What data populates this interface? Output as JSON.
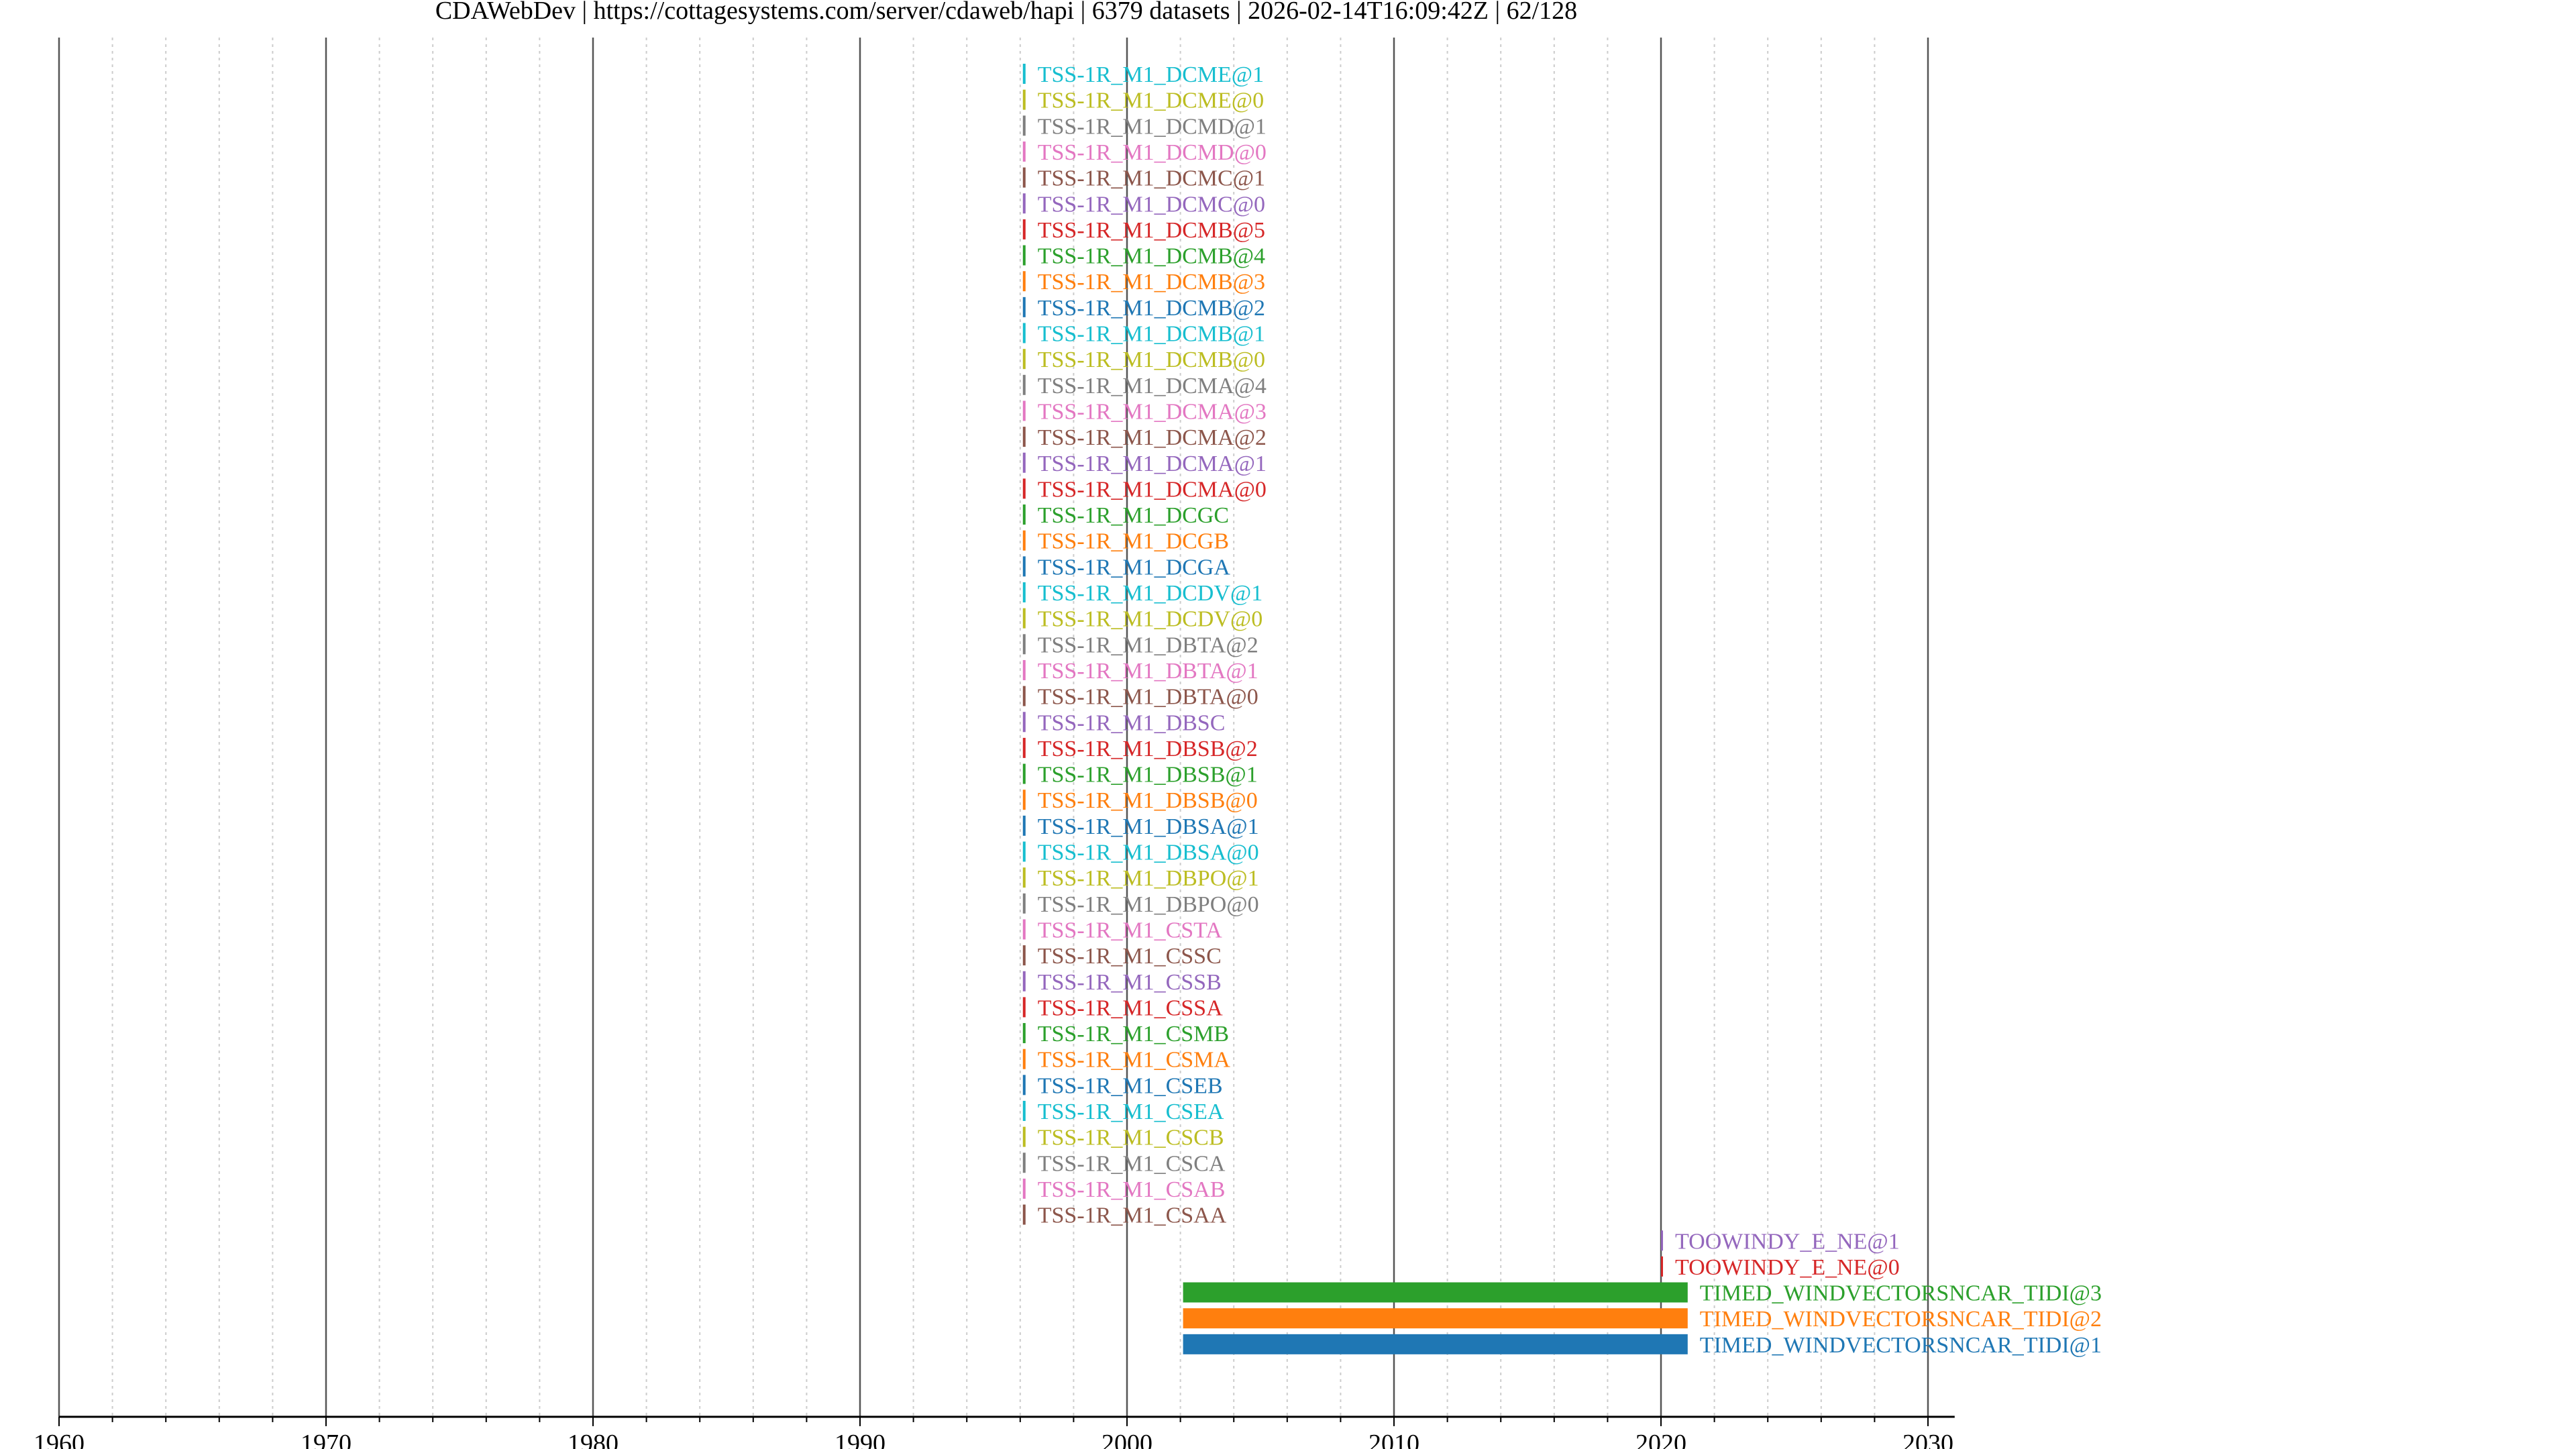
{
  "chart_data": {
    "type": "bar",
    "orientation": "horizontal",
    "title": "CDAWebDev | https://cottagesystems.com/server/cdaweb/hapi | 6379 datasets | 2026-02-14T16:09:42Z | 62/128",
    "xlabel": "",
    "ylabel": "",
    "xlim": [
      1960,
      2031
    ],
    "x_ticks": [
      "1960",
      "1970",
      "1980",
      "1990",
      "2000",
      "2010",
      "2020",
      "2030"
    ],
    "grid": {
      "major_years": 10,
      "minor_years": 2
    },
    "legend": "none",
    "series": [
      {
        "name": "TSS-1R_M1_DCME@1",
        "start": 1996.1,
        "end": 1996.2,
        "color": "#17becf"
      },
      {
        "name": "TSS-1R_M1_DCME@0",
        "start": 1996.1,
        "end": 1996.2,
        "color": "#bcbd22"
      },
      {
        "name": "TSS-1R_M1_DCMD@1",
        "start": 1996.1,
        "end": 1996.2,
        "color": "#7f7f7f"
      },
      {
        "name": "TSS-1R_M1_DCMD@0",
        "start": 1996.1,
        "end": 1996.2,
        "color": "#e377c2"
      },
      {
        "name": "TSS-1R_M1_DCMC@1",
        "start": 1996.1,
        "end": 1996.2,
        "color": "#8c564b"
      },
      {
        "name": "TSS-1R_M1_DCMC@0",
        "start": 1996.1,
        "end": 1996.2,
        "color": "#9467bd"
      },
      {
        "name": "TSS-1R_M1_DCMB@5",
        "start": 1996.1,
        "end": 1996.2,
        "color": "#d62728"
      },
      {
        "name": "TSS-1R_M1_DCMB@4",
        "start": 1996.1,
        "end": 1996.2,
        "color": "#2ca02c"
      },
      {
        "name": "TSS-1R_M1_DCMB@3",
        "start": 1996.1,
        "end": 1996.2,
        "color": "#ff7f0e"
      },
      {
        "name": "TSS-1R_M1_DCMB@2",
        "start": 1996.1,
        "end": 1996.2,
        "color": "#1f77b4"
      },
      {
        "name": "TSS-1R_M1_DCMB@1",
        "start": 1996.1,
        "end": 1996.2,
        "color": "#17becf"
      },
      {
        "name": "TSS-1R_M1_DCMB@0",
        "start": 1996.1,
        "end": 1996.2,
        "color": "#bcbd22"
      },
      {
        "name": "TSS-1R_M1_DCMA@4",
        "start": 1996.1,
        "end": 1996.2,
        "color": "#7f7f7f"
      },
      {
        "name": "TSS-1R_M1_DCMA@3",
        "start": 1996.1,
        "end": 1996.2,
        "color": "#e377c2"
      },
      {
        "name": "TSS-1R_M1_DCMA@2",
        "start": 1996.1,
        "end": 1996.2,
        "color": "#8c564b"
      },
      {
        "name": "TSS-1R_M1_DCMA@1",
        "start": 1996.1,
        "end": 1996.2,
        "color": "#9467bd"
      },
      {
        "name": "TSS-1R_M1_DCMA@0",
        "start": 1996.1,
        "end": 1996.2,
        "color": "#d62728"
      },
      {
        "name": "TSS-1R_M1_DCGC",
        "start": 1996.1,
        "end": 1996.2,
        "color": "#2ca02c"
      },
      {
        "name": "TSS-1R_M1_DCGB",
        "start": 1996.1,
        "end": 1996.2,
        "color": "#ff7f0e"
      },
      {
        "name": "TSS-1R_M1_DCGA",
        "start": 1996.1,
        "end": 1996.2,
        "color": "#1f77b4"
      },
      {
        "name": "TSS-1R_M1_DCDV@1",
        "start": 1996.1,
        "end": 1996.2,
        "color": "#17becf"
      },
      {
        "name": "TSS-1R_M1_DCDV@0",
        "start": 1996.1,
        "end": 1996.2,
        "color": "#bcbd22"
      },
      {
        "name": "TSS-1R_M1_DBTA@2",
        "start": 1996.1,
        "end": 1996.2,
        "color": "#7f7f7f"
      },
      {
        "name": "TSS-1R_M1_DBTA@1",
        "start": 1996.1,
        "end": 1996.2,
        "color": "#e377c2"
      },
      {
        "name": "TSS-1R_M1_DBTA@0",
        "start": 1996.1,
        "end": 1996.2,
        "color": "#8c564b"
      },
      {
        "name": "TSS-1R_M1_DBSC",
        "start": 1996.1,
        "end": 1996.2,
        "color": "#9467bd"
      },
      {
        "name": "TSS-1R_M1_DBSB@2",
        "start": 1996.1,
        "end": 1996.2,
        "color": "#d62728"
      },
      {
        "name": "TSS-1R_M1_DBSB@1",
        "start": 1996.1,
        "end": 1996.2,
        "color": "#2ca02c"
      },
      {
        "name": "TSS-1R_M1_DBSB@0",
        "start": 1996.1,
        "end": 1996.2,
        "color": "#ff7f0e"
      },
      {
        "name": "TSS-1R_M1_DBSA@1",
        "start": 1996.1,
        "end": 1996.2,
        "color": "#1f77b4"
      },
      {
        "name": "TSS-1R_M1_DBSA@0",
        "start": 1996.1,
        "end": 1996.2,
        "color": "#17becf"
      },
      {
        "name": "TSS-1R_M1_DBPO@1",
        "start": 1996.1,
        "end": 1996.2,
        "color": "#bcbd22"
      },
      {
        "name": "TSS-1R_M1_DBPO@0",
        "start": 1996.1,
        "end": 1996.2,
        "color": "#7f7f7f"
      },
      {
        "name": "TSS-1R_M1_CSTA",
        "start": 1996.1,
        "end": 1996.2,
        "color": "#e377c2"
      },
      {
        "name": "TSS-1R_M1_CSSC",
        "start": 1996.1,
        "end": 1996.2,
        "color": "#8c564b"
      },
      {
        "name": "TSS-1R_M1_CSSB",
        "start": 1996.1,
        "end": 1996.2,
        "color": "#9467bd"
      },
      {
        "name": "TSS-1R_M1_CSSA",
        "start": 1996.1,
        "end": 1996.2,
        "color": "#d62728"
      },
      {
        "name": "TSS-1R_M1_CSMB",
        "start": 1996.1,
        "end": 1996.2,
        "color": "#2ca02c"
      },
      {
        "name": "TSS-1R_M1_CSMA",
        "start": 1996.1,
        "end": 1996.2,
        "color": "#ff7f0e"
      },
      {
        "name": "TSS-1R_M1_CSEB",
        "start": 1996.1,
        "end": 1996.2,
        "color": "#1f77b4"
      },
      {
        "name": "TSS-1R_M1_CSEA",
        "start": 1996.1,
        "end": 1996.2,
        "color": "#17becf"
      },
      {
        "name": "TSS-1R_M1_CSCB",
        "start": 1996.1,
        "end": 1996.2,
        "color": "#bcbd22"
      },
      {
        "name": "TSS-1R_M1_CSCA",
        "start": 1996.1,
        "end": 1996.2,
        "color": "#7f7f7f"
      },
      {
        "name": "TSS-1R_M1_CSAB",
        "start": 1996.1,
        "end": 1996.2,
        "color": "#e377c2"
      },
      {
        "name": "TSS-1R_M1_CSAA",
        "start": 1996.1,
        "end": 1996.2,
        "color": "#8c564b"
      },
      {
        "name": "TOOWINDY_E_NE@1",
        "start": 2020.0,
        "end": 2020.0,
        "color": "#9467bd"
      },
      {
        "name": "TOOWINDY_E_NE@0",
        "start": 2020.0,
        "end": 2020.0,
        "color": "#d62728"
      },
      {
        "name": "TIMED_WINDVECTORSNCAR_TIDI@3",
        "start": 2002.1,
        "end": 2021.0,
        "color": "#2ca02c"
      },
      {
        "name": "TIMED_WINDVECTORSNCAR_TIDI@2",
        "start": 2002.1,
        "end": 2021.0,
        "color": "#ff7f0e"
      },
      {
        "name": "TIMED_WINDVECTORSNCAR_TIDI@1",
        "start": 2002.1,
        "end": 2021.0,
        "color": "#1f77b4"
      }
    ]
  }
}
